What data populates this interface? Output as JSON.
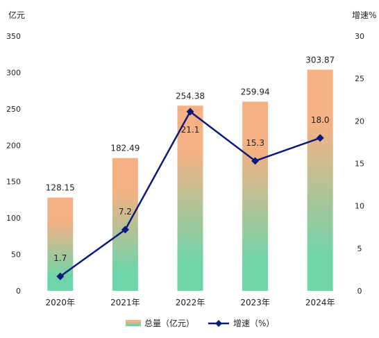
{
  "chart_data": {
    "type": "bar",
    "categories": [
      "2020年",
      "2021年",
      "2022年",
      "2023年",
      "2024年"
    ],
    "y_left": {
      "unit_label": "亿元",
      "range": [
        0,
        350
      ],
      "ticks": [
        "0",
        "50",
        "100",
        "150",
        "200",
        "250",
        "300",
        "350"
      ]
    },
    "y_right": {
      "unit_label": "增速%",
      "range": [
        0,
        30
      ],
      "ticks": [
        "0",
        "5",
        "10",
        "15",
        "20",
        "25",
        "30"
      ]
    },
    "grid": false,
    "legend_position": "bottom",
    "series": [
      {
        "name": "总量（亿元）",
        "kind": "bar",
        "axis": "left",
        "values": [
          128.15,
          182.49,
          254.38,
          259.94,
          303.87
        ],
        "labels": [
          "128.15",
          "182.49",
          "254.38",
          "259.94",
          "303.87"
        ],
        "color_top": "#f4b183",
        "color_bottom": "#6fd4a9"
      },
      {
        "name": "增速（%）",
        "kind": "line",
        "axis": "right",
        "values": [
          1.7,
          7.2,
          21.1,
          15.3,
          18.0
        ],
        "labels": [
          "1.7",
          "7.2",
          "21.1",
          "15.3",
          "18.0"
        ],
        "color": "#0b1a7a"
      }
    ]
  }
}
